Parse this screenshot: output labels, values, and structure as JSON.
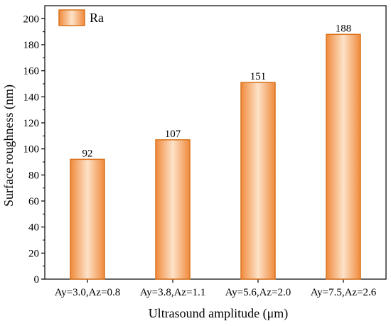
{
  "chart_data": {
    "type": "bar",
    "categories": [
      "Ay=3.0,Az=0.8",
      "Ay=3.8,Az=1.1",
      "Ay=5.6,Az=2.0",
      "Ay=7.5,Az=2.6"
    ],
    "series": [
      {
        "name": "Ra",
        "values": [
          92,
          107,
          151,
          188
        ]
      }
    ],
    "data_labels": [
      "92",
      "107",
      "151",
      "188"
    ],
    "title": "",
    "xlabel": "Ultrasound amplitude (μm)",
    "ylabel": "Surface roughness (nm)",
    "ylim": [
      0,
      210
    ],
    "yticks": [
      0,
      20,
      40,
      60,
      80,
      100,
      120,
      140,
      160,
      180,
      200
    ],
    "grid": false,
    "legend_position": "top-left",
    "colors": {
      "bar_edge": "#d9731d",
      "bar_mid": "#fde2c8",
      "bar_side": "#f08a3c",
      "axis": "#000000"
    }
  }
}
